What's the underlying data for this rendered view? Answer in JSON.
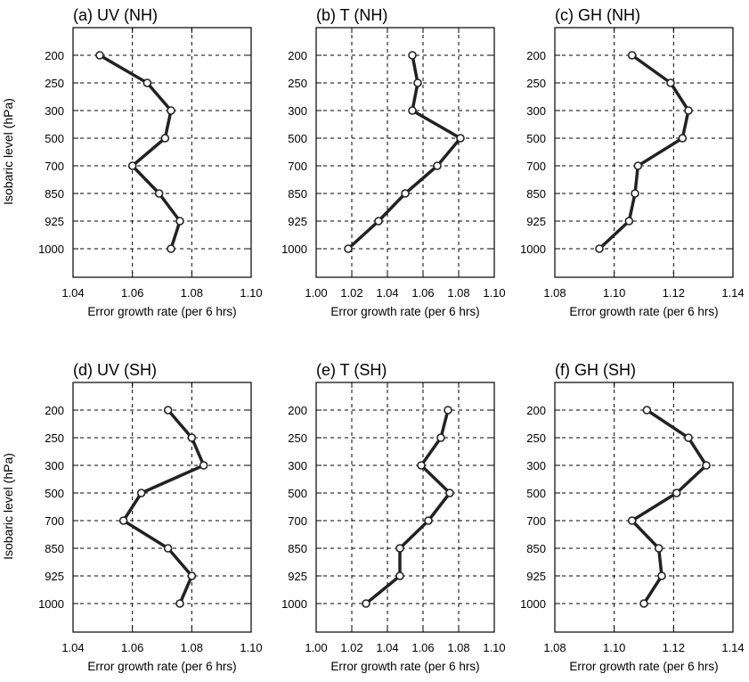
{
  "figure": {
    "ylabel": "Isobaric level (hPa)",
    "colors": {
      "line": "#222222",
      "marker_fill": "#ffffff",
      "grid": "#000000"
    }
  },
  "chart_data": [
    {
      "type": "line",
      "title": "(a) UV (NH)",
      "categories": [
        "200",
        "250",
        "300",
        "500",
        "700",
        "850",
        "925",
        "1000"
      ],
      "xlabel": "Error growth rate (per 6 hrs)",
      "xlim": [
        1.04,
        1.1
      ],
      "xticks": [
        "1.04",
        "1.06",
        "1.08",
        "1.10"
      ],
      "grid": true,
      "values": [
        1.049,
        1.065,
        1.073,
        1.071,
        1.06,
        1.069,
        1.076,
        1.073
      ]
    },
    {
      "type": "line",
      "title": "(b) T (NH)",
      "categories": [
        "200",
        "250",
        "300",
        "500",
        "700",
        "850",
        "925",
        "1000"
      ],
      "xlabel": "Error growth rate (per 6 hrs)",
      "xlim": [
        1.0,
        1.1
      ],
      "xticks": [
        "1.00",
        "1.02",
        "1.04",
        "1.06",
        "1.08",
        "1.10"
      ],
      "grid": true,
      "values": [
        1.054,
        1.057,
        1.054,
        1.081,
        1.068,
        1.05,
        1.035,
        1.018
      ]
    },
    {
      "type": "line",
      "title": "(c) GH (NH)",
      "categories": [
        "200",
        "250",
        "300",
        "500",
        "700",
        "850",
        "925",
        "1000"
      ],
      "xlabel": "Error growth rate (per 6 hrs)",
      "xlim": [
        1.08,
        1.14
      ],
      "xticks": [
        "1.08",
        "1.10",
        "1.12",
        "1.14"
      ],
      "grid": true,
      "values": [
        1.106,
        1.119,
        1.125,
        1.123,
        1.108,
        1.107,
        1.105,
        1.095
      ]
    },
    {
      "type": "line",
      "title": "(d) UV (SH)",
      "categories": [
        "200",
        "250",
        "300",
        "500",
        "700",
        "850",
        "925",
        "1000"
      ],
      "xlabel": "Error growth rate (per 6 hrs)",
      "xlim": [
        1.04,
        1.1
      ],
      "xticks": [
        "1.04",
        "1.06",
        "1.08",
        "1.10"
      ],
      "grid": true,
      "values": [
        1.072,
        1.08,
        1.084,
        1.063,
        1.057,
        1.072,
        1.08,
        1.076
      ]
    },
    {
      "type": "line",
      "title": "(e) T (SH)",
      "categories": [
        "200",
        "250",
        "300",
        "500",
        "700",
        "850",
        "925",
        "1000"
      ],
      "xlabel": "Error growth rate (per 6 hrs)",
      "xlim": [
        1.0,
        1.1
      ],
      "xticks": [
        "1.00",
        "1.02",
        "1.04",
        "1.06",
        "1.08",
        "1.10"
      ],
      "grid": true,
      "values": [
        1.074,
        1.07,
        1.059,
        1.075,
        1.063,
        1.047,
        1.047,
        1.028
      ]
    },
    {
      "type": "line",
      "title": "(f) GH (SH)",
      "categories": [
        "200",
        "250",
        "300",
        "500",
        "700",
        "850",
        "925",
        "1000"
      ],
      "xlabel": "Error growth rate (per 6 hrs)",
      "xlim": [
        1.08,
        1.14
      ],
      "xticks": [
        "1.08",
        "1.10",
        "1.12",
        "1.14"
      ],
      "grid": true,
      "values": [
        1.111,
        1.125,
        1.131,
        1.121,
        1.106,
        1.115,
        1.116,
        1.11
      ]
    }
  ]
}
